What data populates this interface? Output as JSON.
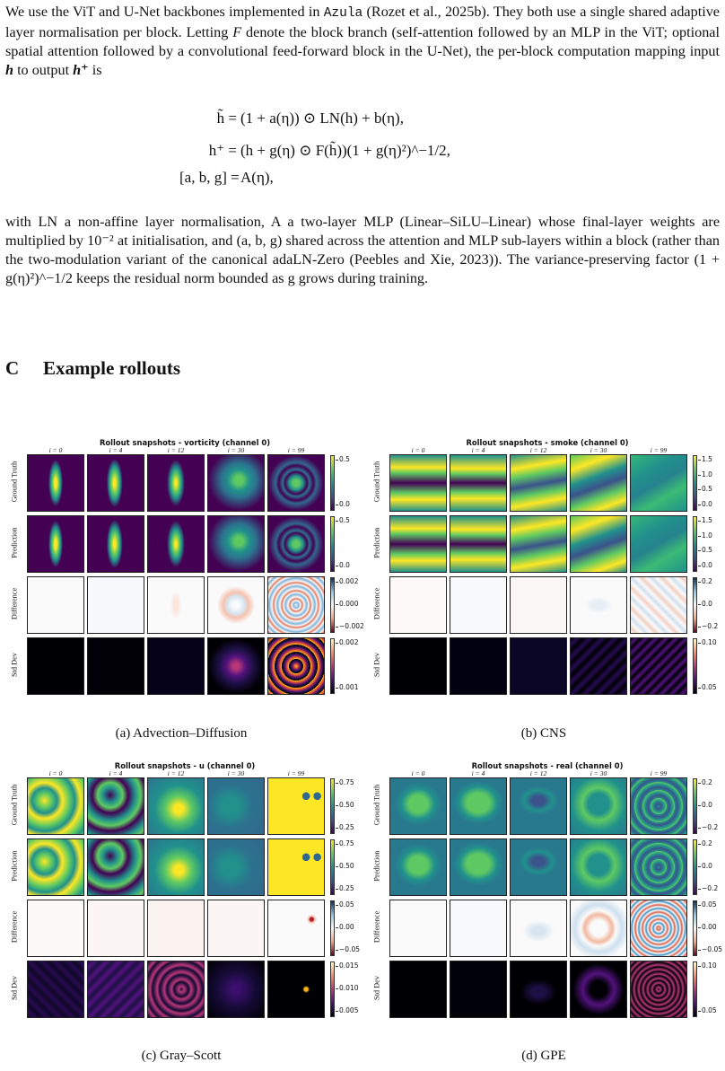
{
  "intro": {
    "text_a": "We use the ViT and U-Net backbones implemented in ",
    "azula": "Azula",
    "text_b": " (Rozet et al., 2025b). They both use a single shared adaptive layer normalisation per block. Letting ",
    "F": "F",
    "text_c": " denote the block branch (self-attention followed by an MLP in the ViT; optional spatial attention followed by a convolutional feed-forward block in the U-Net), the per-block computation mapping input ",
    "h": "h",
    "text_d": " to output ",
    "hplus": "h⁺",
    "text_e": " is"
  },
  "equations": [
    {
      "lhs": "h̃ =",
      "rhs": "(1 + a(η)) ⊙ LN(h) + b(η),"
    },
    {
      "lhs": "h⁺ =",
      "rhs": "(h + g(η) ⊙ F(h̃))(1 + g(η)²)^−1/2,"
    },
    {
      "lhs": "[a, b, g] =",
      "rhs": "A(η),"
    }
  ],
  "body2": "with LN a non-affine layer normalisation, A a two-layer MLP (Linear–SiLU–Linear) whose final-layer weights are multiplied by 10⁻² at initialisation, and (a, b, g) shared across the attention and MLP sub-layers within a block (rather than the two-modulation variant of the canonical adaLN-Zero (Peebles and Xie, 2023)). The variance-preserving factor (1 + g(η)²)^−1/2 keeps the residual norm bounded as g grows during training.",
  "section": {
    "number": "C",
    "title": "Example rollouts"
  },
  "row_labels": [
    "Ground Truth",
    "Prediction",
    "Difference",
    "Std Dev"
  ],
  "col_labels": [
    "i = 0",
    "i = 4",
    "i = 12",
    "i = 30",
    "i = 99"
  ],
  "panels": [
    {
      "id": "a",
      "title": "Rollout snapshots - vorticity (channel 0)",
      "caption": "(a) Advection–Diffusion",
      "colorbars": [
        [
          "0.5",
          "0.0"
        ],
        [
          "0.5",
          "0.0"
        ],
        [
          "0.002",
          "0.000",
          "−0.002"
        ],
        [
          "0.002",
          "0.001"
        ]
      ]
    },
    {
      "id": "b",
      "title": "Rollout snapshots - smoke (channel 0)",
      "caption": "(b) CNS",
      "colorbars": [
        [
          "1.5",
          "1.0",
          "0.5",
          "0.0"
        ],
        [
          "1.5",
          "1.0",
          "0.5",
          "0.0"
        ],
        [
          "0.2",
          "0.0",
          "−0.2"
        ],
        [
          "0.10",
          "0.05"
        ]
      ]
    },
    {
      "id": "c",
      "title": "Rollout snapshots - u (channel 0)",
      "caption": "(c) Gray–Scott",
      "colorbars": [
        [
          "0.75",
          "0.50",
          "0.25"
        ],
        [
          "0.75",
          "0.50",
          "0.25"
        ],
        [
          "0.05",
          "0.00",
          "−0.05"
        ],
        [
          "0.015",
          "0.010",
          "0.005"
        ]
      ]
    },
    {
      "id": "d",
      "title": "Rollout snapshots - real (channel 0)",
      "caption": "(d) GPE",
      "colorbars": [
        [
          "0.2",
          "0.0",
          "−0.2"
        ],
        [
          "0.2",
          "0.0",
          "−0.2"
        ],
        [
          "0.05",
          "0.00",
          "−0.05"
        ],
        [
          "0.10",
          "0.05"
        ]
      ]
    }
  ]
}
